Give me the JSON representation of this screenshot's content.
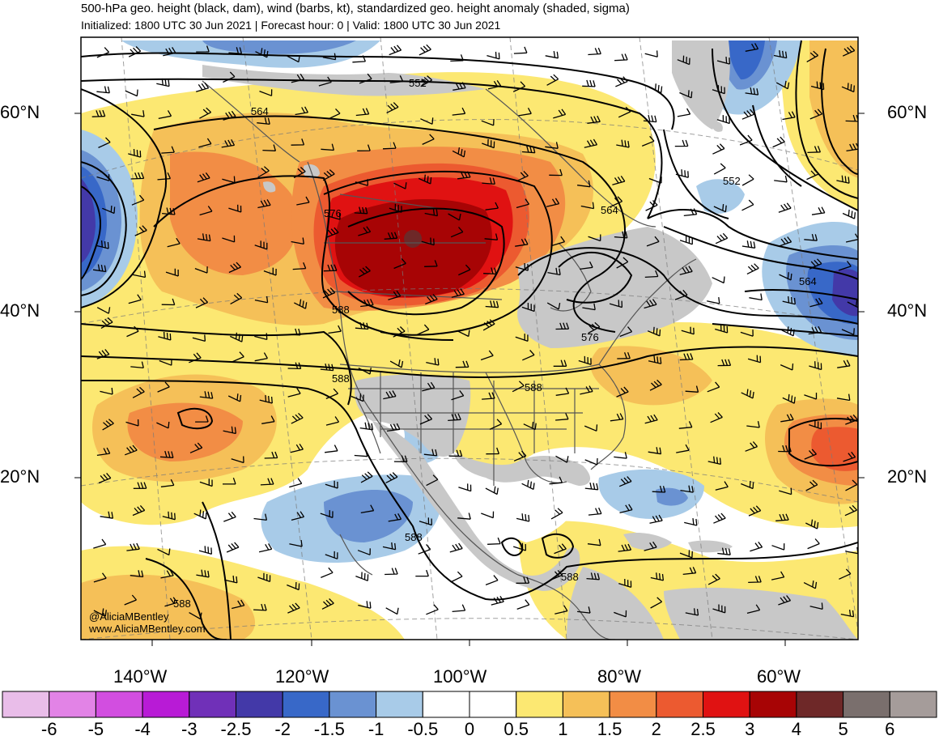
{
  "header": {
    "title": "500-hPa geo. height (black, dam), wind (barbs, kt), standardized geo. height anomaly (shaded, sigma)",
    "subtitle": "Initialized: 1800 UTC 30 Jun 2021 | Forecast hour: 0 | Valid: 1800 UTC 30 Jun 2021"
  },
  "map": {
    "lat_labels": [
      "60°N",
      "40°N",
      "20°N"
    ],
    "lon_labels": [
      "140°W",
      "120°W",
      "100°W",
      "80°W",
      "60°W"
    ],
    "contour_labels": [
      "552",
      "564",
      "576",
      "588",
      "564",
      "552",
      "564",
      "576",
      "588",
      "588",
      "588",
      "588",
      "588"
    ],
    "credit_handle": "@AliciaMBentley",
    "credit_url": "www.AliciaMBentley.com"
  },
  "colorbar": {
    "labels": [
      "-6",
      "-5",
      "-4",
      "-3",
      "-2.5",
      "-2",
      "-1.5",
      "-1",
      "-0.5",
      "0",
      "0.5",
      "1",
      "1.5",
      "2",
      "2.5",
      "3",
      "4",
      "5",
      "6"
    ],
    "colors": [
      "#e9bde9",
      "#e283e6",
      "#d24ee0",
      "#b81bd6",
      "#7030b8",
      "#4339a8",
      "#3868c8",
      "#6a92d2",
      "#a8cbe8",
      "#ffffff",
      "#ffffff",
      "#fce872",
      "#f5c058",
      "#f28d45",
      "#ec5a30",
      "#e01212",
      "#a70405",
      "#6e2828",
      "#7a6f6d",
      "#a59c9a"
    ]
  },
  "colors": {
    "land": "#c8c8c8",
    "positive_anomaly_max": "#a70405",
    "negative_anomaly": "#4339a8"
  }
}
